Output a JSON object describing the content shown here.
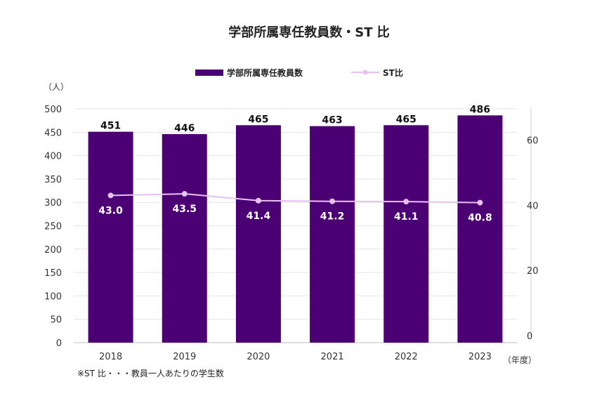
{
  "chart_data": {
    "type": "bar",
    "title": "学部所属専任教員数・ST 比",
    "categories": [
      "2018",
      "2019",
      "2020",
      "2021",
      "2022",
      "2023"
    ],
    "series": [
      {
        "name": "学部所属専任教員数",
        "kind": "bar",
        "axis": "left",
        "values": [
          451,
          446,
          465,
          463,
          465,
          486
        ],
        "color": "#4b0073"
      },
      {
        "name": "ST比",
        "kind": "line",
        "axis": "right",
        "values": [
          43.0,
          43.5,
          41.4,
          41.2,
          41.1,
          40.8
        ],
        "color": "#e6c2f0"
      }
    ],
    "bar_value_labels": [
      "451",
      "446",
      "465",
      "463",
      "465",
      "486"
    ],
    "line_value_labels": [
      "43.0",
      "43.5",
      "41.4",
      "41.2",
      "41.1",
      "40.8"
    ],
    "y_left": {
      "unit_label": "（人）",
      "ylim": [
        0,
        500
      ],
      "ticks": [
        0,
        50,
        100,
        150,
        200,
        250,
        300,
        350,
        400,
        450,
        500
      ]
    },
    "y_right": {
      "ylim": [
        0,
        70
      ],
      "ticks": [
        0,
        20,
        40,
        60
      ]
    },
    "x_unit_label": "（年度）",
    "legend_position": "top-center",
    "grid": true,
    "footnote": "※ST 比・・・教員一人あたりの学生数"
  }
}
